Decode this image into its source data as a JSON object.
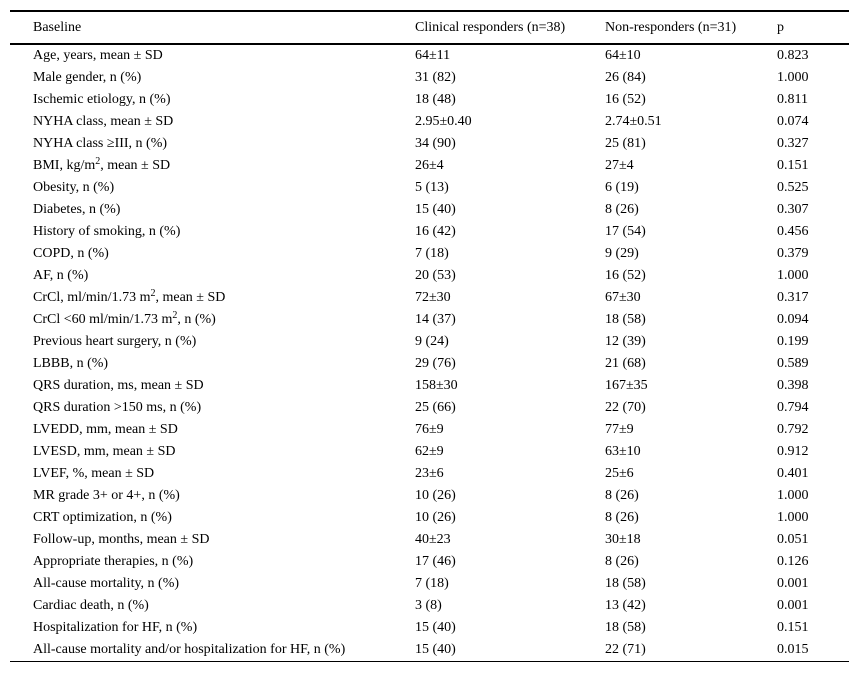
{
  "table": {
    "columns": [
      "Baseline",
      "Clinical responders (n=38)",
      "Non-responders (n=31)",
      "p"
    ],
    "rows": [
      [
        "Age, years, mean ± SD",
        "64±11",
        "64±10",
        "0.823"
      ],
      [
        "Male gender, n (%)",
        "31 (82)",
        "26 (84)",
        "1.000"
      ],
      [
        "Ischemic etiology, n (%)",
        "18 (48)",
        "16 (52)",
        "0.811"
      ],
      [
        "NYHA class, mean ± SD",
        "2.95±0.40",
        "2.74±0.51",
        "0.074"
      ],
      [
        "NYHA class ≥III, n (%)",
        "34 (90)",
        "25 (81)",
        "0.327"
      ],
      [
        "BMI, kg/m², mean ± SD",
        "26±4",
        "27±4",
        "0.151"
      ],
      [
        "Obesity, n (%)",
        "5 (13)",
        "6 (19)",
        "0.525"
      ],
      [
        "Diabetes, n (%)",
        "15 (40)",
        "8 (26)",
        "0.307"
      ],
      [
        "History of smoking, n (%)",
        "16 (42)",
        "17 (54)",
        "0.456"
      ],
      [
        "COPD, n (%)",
        "7 (18)",
        "9 (29)",
        "0.379"
      ],
      [
        "AF, n (%)",
        "20 (53)",
        "16 (52)",
        "1.000"
      ],
      [
        "CrCl, ml/min/1.73 m², mean ± SD",
        "72±30",
        "67±30",
        "0.317"
      ],
      [
        "CrCl <60 ml/min/1.73 m², n (%)",
        "14 (37)",
        "18 (58)",
        "0.094"
      ],
      [
        "Previous heart surgery, n (%)",
        "9 (24)",
        "12 (39)",
        "0.199"
      ],
      [
        "LBBB, n (%)",
        "29 (76)",
        "21 (68)",
        "0.589"
      ],
      [
        "QRS duration, ms, mean ± SD",
        "158±30",
        "167±35",
        "0.398"
      ],
      [
        "QRS duration >150 ms, n (%)",
        "25 (66)",
        "22 (70)",
        "0.794"
      ],
      [
        "LVEDD, mm, mean ± SD",
        "76±9",
        "77±9",
        "0.792"
      ],
      [
        "LVESD, mm, mean ± SD",
        "62±9",
        "63±10",
        "0.912"
      ],
      [
        "LVEF, %, mean ± SD",
        "23±6",
        "25±6",
        "0.401"
      ],
      [
        "MR grade 3+ or 4+, n (%)",
        "10 (26)",
        "8 (26)",
        "1.000"
      ],
      [
        "CRT optimization, n (%)",
        "10 (26)",
        "8 (26)",
        "1.000"
      ],
      [
        "Follow-up, months, mean ± SD",
        "40±23",
        "30±18",
        "0.051"
      ],
      [
        "Appropriate therapies, n (%)",
        "17 (46)",
        "8 (26)",
        "0.126"
      ],
      [
        "All-cause mortality, n (%)",
        "7 (18)",
        "18 (58)",
        "0.001"
      ],
      [
        "Cardiac death, n (%)",
        "3 (8)",
        "13 (42)",
        "0.001"
      ],
      [
        "Hospitalization for HF, n (%)",
        "15 (40)",
        "18 (58)",
        "0.151"
      ],
      [
        "All-cause mortality and/or hospitalization for HF, n (%)",
        "15 (40)",
        "22 (71)",
        "0.015"
      ]
    ]
  }
}
